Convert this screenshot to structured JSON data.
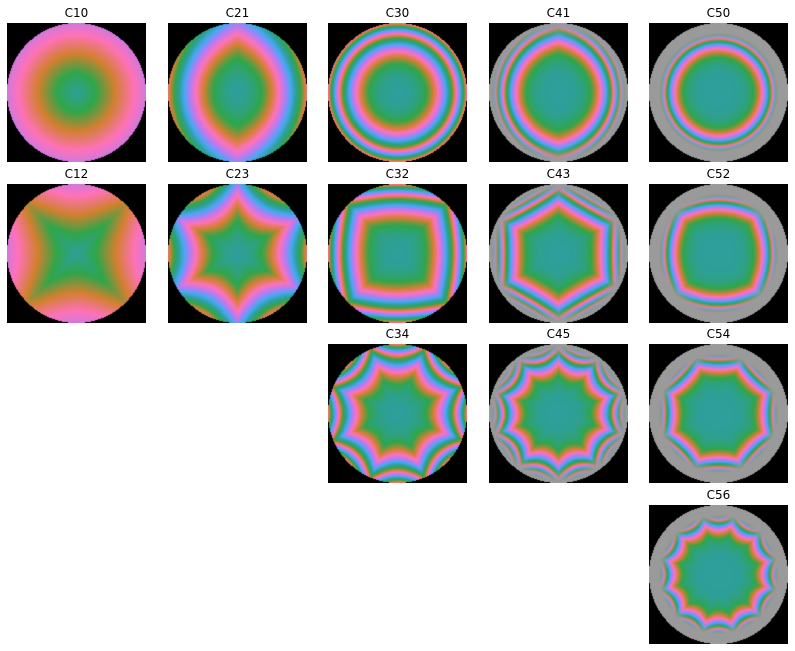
{
  "figure": {
    "panels": [
      {
        "label": "C10",
        "n": 1,
        "m": 0
      },
      {
        "label": "C21",
        "n": 2,
        "m": 1
      },
      {
        "label": "C30",
        "n": 3,
        "m": 0
      },
      {
        "label": "C41",
        "n": 4,
        "m": 1
      },
      {
        "label": "C50",
        "n": 5,
        "m": 0
      },
      {
        "label": "C12",
        "n": 1,
        "m": 2
      },
      {
        "label": "C23",
        "n": 2,
        "m": 3
      },
      {
        "label": "C32",
        "n": 3,
        "m": 2
      },
      {
        "label": "C43",
        "n": 4,
        "m": 3
      },
      {
        "label": "C52",
        "n": 5,
        "m": 2
      },
      {
        "label": "C34",
        "n": 3,
        "m": 4
      },
      {
        "label": "C45",
        "n": 4,
        "m": 5
      },
      {
        "label": "C54",
        "n": 5,
        "m": 4
      },
      {
        "label": "C56",
        "n": 5,
        "m": 6
      }
    ],
    "colors": {
      "background": "#000000",
      "center": "#2e9f9a",
      "green": "#2fa64a",
      "orange": "#d2802f",
      "pink": "#ff72b8",
      "violet": "#b47cf5",
      "blue": "#46a9f2",
      "gray": "#9a9a9a"
    }
  }
}
